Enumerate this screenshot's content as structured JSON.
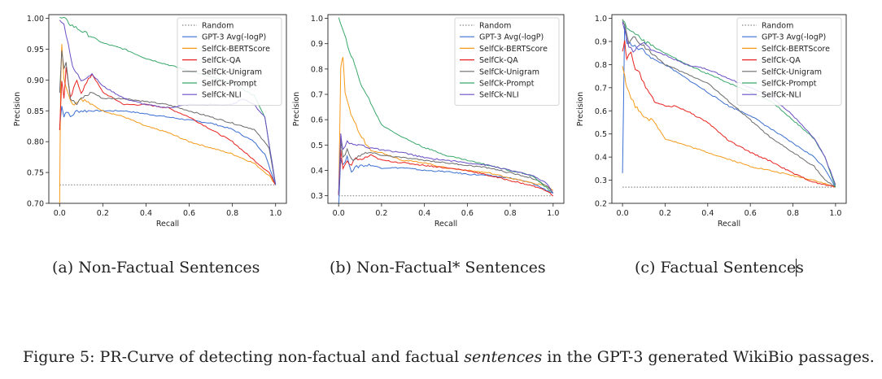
{
  "figure": {
    "caption_prefix": "Figure 5: PR-Curve of detecting non-factual and factual ",
    "caption_emph": "sentences",
    "caption_suffix": " in the GPT-3 generated WikiBio passages."
  },
  "colors": {
    "Random": "#888888",
    "GPT-3 Avg(-logP)": "#3b6fd1",
    "SelfCk-BERTScore": "#f59a1a",
    "SelfCk-QA": "#e8231f",
    "SelfCk-Unigram": "#6b6b6b",
    "SelfCk-Prompt": "#3aa86b",
    "SelfCk-NLI": "#6a4fc4"
  },
  "chart_data": [
    {
      "type": "line",
      "caption": "(a) Non-Factual Sentences",
      "xlabel": "Recall",
      "ylabel": "Precision",
      "xlim": [
        0,
        1.0
      ],
      "ylim": [
        0.7,
        1.0
      ],
      "xticks": [
        "0.0",
        "0.2",
        "0.4",
        "0.6",
        "0.8",
        "1.0"
      ],
      "yticks": [
        "0.70",
        "0.75",
        "0.80",
        "0.85",
        "0.90",
        "0.95",
        "1.00"
      ],
      "legend_position": "top-right",
      "series": [
        {
          "name": "Random",
          "style": "dotted",
          "x": [
            0,
            1.0
          ],
          "y": [
            0.73,
            0.73
          ]
        },
        {
          "name": "GPT-3 Avg(-logP)",
          "x": [
            0.0,
            0.01,
            0.02,
            0.03,
            0.05,
            0.08,
            0.1,
            0.15,
            0.2,
            0.3,
            0.4,
            0.5,
            0.6,
            0.7,
            0.8,
            0.9,
            0.95,
            1.0
          ],
          "y": [
            0.82,
            0.86,
            0.84,
            0.85,
            0.84,
            0.85,
            0.85,
            0.85,
            0.85,
            0.85,
            0.845,
            0.84,
            0.835,
            0.83,
            0.82,
            0.8,
            0.78,
            0.73
          ]
        },
        {
          "name": "SelfCk-BERTScore",
          "x": [
            0.0,
            0.005,
            0.01,
            0.02,
            0.04,
            0.06,
            0.1,
            0.15,
            0.2,
            0.3,
            0.4,
            0.5,
            0.6,
            0.7,
            0.8,
            0.9,
            0.97,
            1.0
          ],
          "y": [
            0.7,
            0.9,
            0.96,
            0.9,
            0.88,
            0.86,
            0.87,
            0.86,
            0.85,
            0.84,
            0.825,
            0.815,
            0.8,
            0.79,
            0.78,
            0.765,
            0.745,
            0.73
          ]
        },
        {
          "name": "SelfCk-QA",
          "x": [
            0.0,
            0.01,
            0.02,
            0.03,
            0.05,
            0.08,
            0.1,
            0.15,
            0.2,
            0.3,
            0.4,
            0.5,
            0.6,
            0.7,
            0.8,
            0.9,
            0.97,
            1.0
          ],
          "y": [
            0.82,
            0.9,
            0.87,
            0.92,
            0.87,
            0.9,
            0.88,
            0.91,
            0.88,
            0.86,
            0.86,
            0.855,
            0.84,
            0.82,
            0.8,
            0.77,
            0.75,
            0.73
          ]
        },
        {
          "name": "SelfCk-Unigram",
          "x": [
            0.0,
            0.01,
            0.02,
            0.03,
            0.05,
            0.08,
            0.1,
            0.15,
            0.2,
            0.3,
            0.4,
            0.5,
            0.6,
            0.7,
            0.8,
            0.9,
            0.97,
            1.0
          ],
          "y": [
            0.88,
            0.95,
            0.92,
            0.93,
            0.87,
            0.86,
            0.87,
            0.88,
            0.87,
            0.87,
            0.865,
            0.86,
            0.85,
            0.84,
            0.83,
            0.82,
            0.79,
            0.73
          ]
        },
        {
          "name": "SelfCk-Prompt",
          "x": [
            0.0,
            0.02,
            0.05,
            0.1,
            0.2,
            0.3,
            0.4,
            0.5,
            0.6,
            0.7,
            0.8,
            0.85,
            0.9,
            0.95,
            1.0
          ],
          "y": [
            1.0,
            1.0,
            0.99,
            0.98,
            0.96,
            0.95,
            0.935,
            0.925,
            0.915,
            0.905,
            0.895,
            0.885,
            0.875,
            0.84,
            0.73
          ]
        },
        {
          "name": "SelfCk-NLI",
          "x": [
            0.0,
            0.02,
            0.04,
            0.06,
            0.1,
            0.15,
            0.2,
            0.3,
            0.4,
            0.5,
            0.6,
            0.7,
            0.8,
            0.85,
            0.9,
            0.95,
            1.0
          ],
          "y": [
            1.0,
            0.99,
            0.96,
            0.92,
            0.9,
            0.91,
            0.89,
            0.87,
            0.86,
            0.855,
            0.86,
            0.86,
            0.86,
            0.87,
            0.86,
            0.84,
            0.73
          ]
        }
      ]
    },
    {
      "type": "line",
      "caption": "(b) Non-Factual* Sentences",
      "xlabel": "Recall",
      "ylabel": "Precision",
      "xlim": [
        0,
        1.0
      ],
      "ylim": [
        0.27,
        1.0
      ],
      "xticks": [
        "0.0",
        "0.2",
        "0.4",
        "0.6",
        "0.8",
        "1.0"
      ],
      "yticks": [
        "0.3",
        "0.4",
        "0.5",
        "0.6",
        "0.7",
        "0.8",
        "0.9",
        "1.0"
      ],
      "legend_position": "top-right",
      "series": [
        {
          "name": "Random",
          "style": "dotted",
          "x": [
            0,
            1.0
          ],
          "y": [
            0.3,
            0.3
          ]
        },
        {
          "name": "GPT-3 Avg(-logP)",
          "x": [
            0.0,
            0.01,
            0.02,
            0.04,
            0.06,
            0.1,
            0.15,
            0.2,
            0.3,
            0.4,
            0.5,
            0.6,
            0.7,
            0.8,
            0.9,
            0.95,
            1.0
          ],
          "y": [
            0.26,
            0.45,
            0.42,
            0.45,
            0.4,
            0.42,
            0.42,
            0.41,
            0.41,
            0.4,
            0.395,
            0.385,
            0.38,
            0.37,
            0.35,
            0.33,
            0.31
          ]
        },
        {
          "name": "SelfCk-BERTScore",
          "x": [
            0.0,
            0.01,
            0.02,
            0.03,
            0.05,
            0.08,
            0.1,
            0.15,
            0.2,
            0.3,
            0.4,
            0.5,
            0.6,
            0.7,
            0.8,
            0.9,
            0.97,
            1.0
          ],
          "y": [
            0.3,
            0.8,
            0.85,
            0.7,
            0.64,
            0.58,
            0.54,
            0.48,
            0.47,
            0.44,
            0.43,
            0.41,
            0.4,
            0.39,
            0.37,
            0.35,
            0.34,
            0.32
          ]
        },
        {
          "name": "SelfCk-QA",
          "x": [
            0.0,
            0.01,
            0.02,
            0.04,
            0.06,
            0.08,
            0.1,
            0.15,
            0.2,
            0.3,
            0.4,
            0.5,
            0.6,
            0.7,
            0.8,
            0.9,
            0.97,
            1.0
          ],
          "y": [
            0.3,
            0.48,
            0.4,
            0.44,
            0.42,
            0.45,
            0.44,
            0.46,
            0.44,
            0.43,
            0.42,
            0.41,
            0.4,
            0.38,
            0.36,
            0.34,
            0.32,
            0.3
          ]
        },
        {
          "name": "SelfCk-Unigram",
          "x": [
            0.0,
            0.01,
            0.02,
            0.04,
            0.06,
            0.1,
            0.15,
            0.2,
            0.3,
            0.4,
            0.5,
            0.6,
            0.7,
            0.8,
            0.9,
            0.97,
            1.0
          ],
          "y": [
            0.3,
            0.52,
            0.45,
            0.48,
            0.44,
            0.46,
            0.47,
            0.46,
            0.45,
            0.44,
            0.43,
            0.42,
            0.41,
            0.39,
            0.37,
            0.34,
            0.31
          ]
        },
        {
          "name": "SelfCk-Prompt",
          "x": [
            0.0,
            0.1,
            0.2,
            0.3,
            0.4,
            0.5,
            0.6,
            0.7,
            0.8,
            0.9,
            1.0
          ],
          "y": [
            1.0,
            0.75,
            0.58,
            0.53,
            0.49,
            0.46,
            0.44,
            0.42,
            0.4,
            0.38,
            0.31
          ]
        },
        {
          "name": "SelfCk-NLI",
          "x": [
            0.0,
            0.01,
            0.02,
            0.04,
            0.06,
            0.1,
            0.15,
            0.2,
            0.3,
            0.4,
            0.5,
            0.6,
            0.7,
            0.8,
            0.9,
            0.97,
            1.0
          ],
          "y": [
            0.3,
            0.55,
            0.48,
            0.52,
            0.5,
            0.5,
            0.49,
            0.48,
            0.47,
            0.45,
            0.44,
            0.43,
            0.42,
            0.4,
            0.38,
            0.35,
            0.31
          ]
        }
      ]
    },
    {
      "type": "line",
      "caption": "(c) Factual Sentences",
      "xlabel": "Recall",
      "ylabel": "Precision",
      "xlim": [
        0,
        1.0
      ],
      "ylim": [
        0.2,
        1.0
      ],
      "xticks": [
        "0.0",
        "0.2",
        "0.4",
        "0.6",
        "0.8",
        "1.0"
      ],
      "yticks": [
        "0.2",
        "0.3",
        "0.4",
        "0.5",
        "0.6",
        "0.7",
        "0.8",
        "0.9",
        "1.0"
      ],
      "legend_position": "top-right",
      "series": [
        {
          "name": "Random",
          "style": "dotted",
          "x": [
            0,
            1.0
          ],
          "y": [
            0.27,
            0.27
          ]
        },
        {
          "name": "GPT-3 Avg(-logP)",
          "x": [
            0.0,
            0.01,
            0.02,
            0.05,
            0.1,
            0.15,
            0.2,
            0.3,
            0.4,
            0.5,
            0.6,
            0.7,
            0.8,
            0.9,
            0.95,
            1.0
          ],
          "y": [
            0.33,
            0.97,
            0.9,
            0.88,
            0.86,
            0.82,
            0.8,
            0.74,
            0.68,
            0.62,
            0.58,
            0.52,
            0.46,
            0.4,
            0.35,
            0.27
          ]
        },
        {
          "name": "SelfCk-BERTScore",
          "x": [
            0.0,
            0.01,
            0.02,
            0.04,
            0.06,
            0.1,
            0.15,
            0.2,
            0.3,
            0.4,
            0.5,
            0.6,
            0.7,
            0.8,
            0.9,
            1.0
          ],
          "y": [
            0.8,
            0.75,
            0.7,
            0.66,
            0.62,
            0.58,
            0.55,
            0.48,
            0.45,
            0.42,
            0.39,
            0.36,
            0.34,
            0.32,
            0.3,
            0.27
          ]
        },
        {
          "name": "SelfCk-QA",
          "x": [
            0.0,
            0.01,
            0.02,
            0.04,
            0.06,
            0.08,
            0.1,
            0.15,
            0.2,
            0.25,
            0.3,
            0.4,
            0.5,
            0.6,
            0.7,
            0.8,
            0.9,
            1.0
          ],
          "y": [
            0.85,
            0.9,
            0.82,
            0.86,
            0.78,
            0.76,
            0.72,
            0.64,
            0.62,
            0.62,
            0.6,
            0.55,
            0.47,
            0.42,
            0.38,
            0.33,
            0.29,
            0.27
          ]
        },
        {
          "name": "SelfCk-Unigram",
          "x": [
            0.0,
            0.01,
            0.03,
            0.05,
            0.1,
            0.15,
            0.2,
            0.3,
            0.4,
            0.5,
            0.6,
            0.7,
            0.8,
            0.9,
            0.95,
            1.0
          ],
          "y": [
            1.0,
            0.97,
            0.9,
            0.92,
            0.88,
            0.84,
            0.8,
            0.76,
            0.72,
            0.64,
            0.56,
            0.48,
            0.42,
            0.36,
            0.3,
            0.27
          ]
        },
        {
          "name": "SelfCk-Prompt",
          "x": [
            0.0,
            0.02,
            0.05,
            0.1,
            0.2,
            0.3,
            0.4,
            0.5,
            0.6,
            0.7,
            0.8,
            0.9,
            0.95,
            1.0
          ],
          "y": [
            1.0,
            0.96,
            0.94,
            0.9,
            0.85,
            0.8,
            0.76,
            0.72,
            0.68,
            0.64,
            0.56,
            0.48,
            0.4,
            0.27
          ]
        },
        {
          "name": "SelfCk-NLI",
          "x": [
            0.0,
            0.01,
            0.03,
            0.05,
            0.1,
            0.15,
            0.2,
            0.3,
            0.4,
            0.5,
            0.6,
            0.7,
            0.8,
            0.9,
            0.95,
            1.0
          ],
          "y": [
            0.98,
            0.95,
            0.88,
            0.86,
            0.89,
            0.86,
            0.84,
            0.8,
            0.78,
            0.74,
            0.7,
            0.66,
            0.58,
            0.48,
            0.4,
            0.28
          ]
        }
      ]
    }
  ]
}
